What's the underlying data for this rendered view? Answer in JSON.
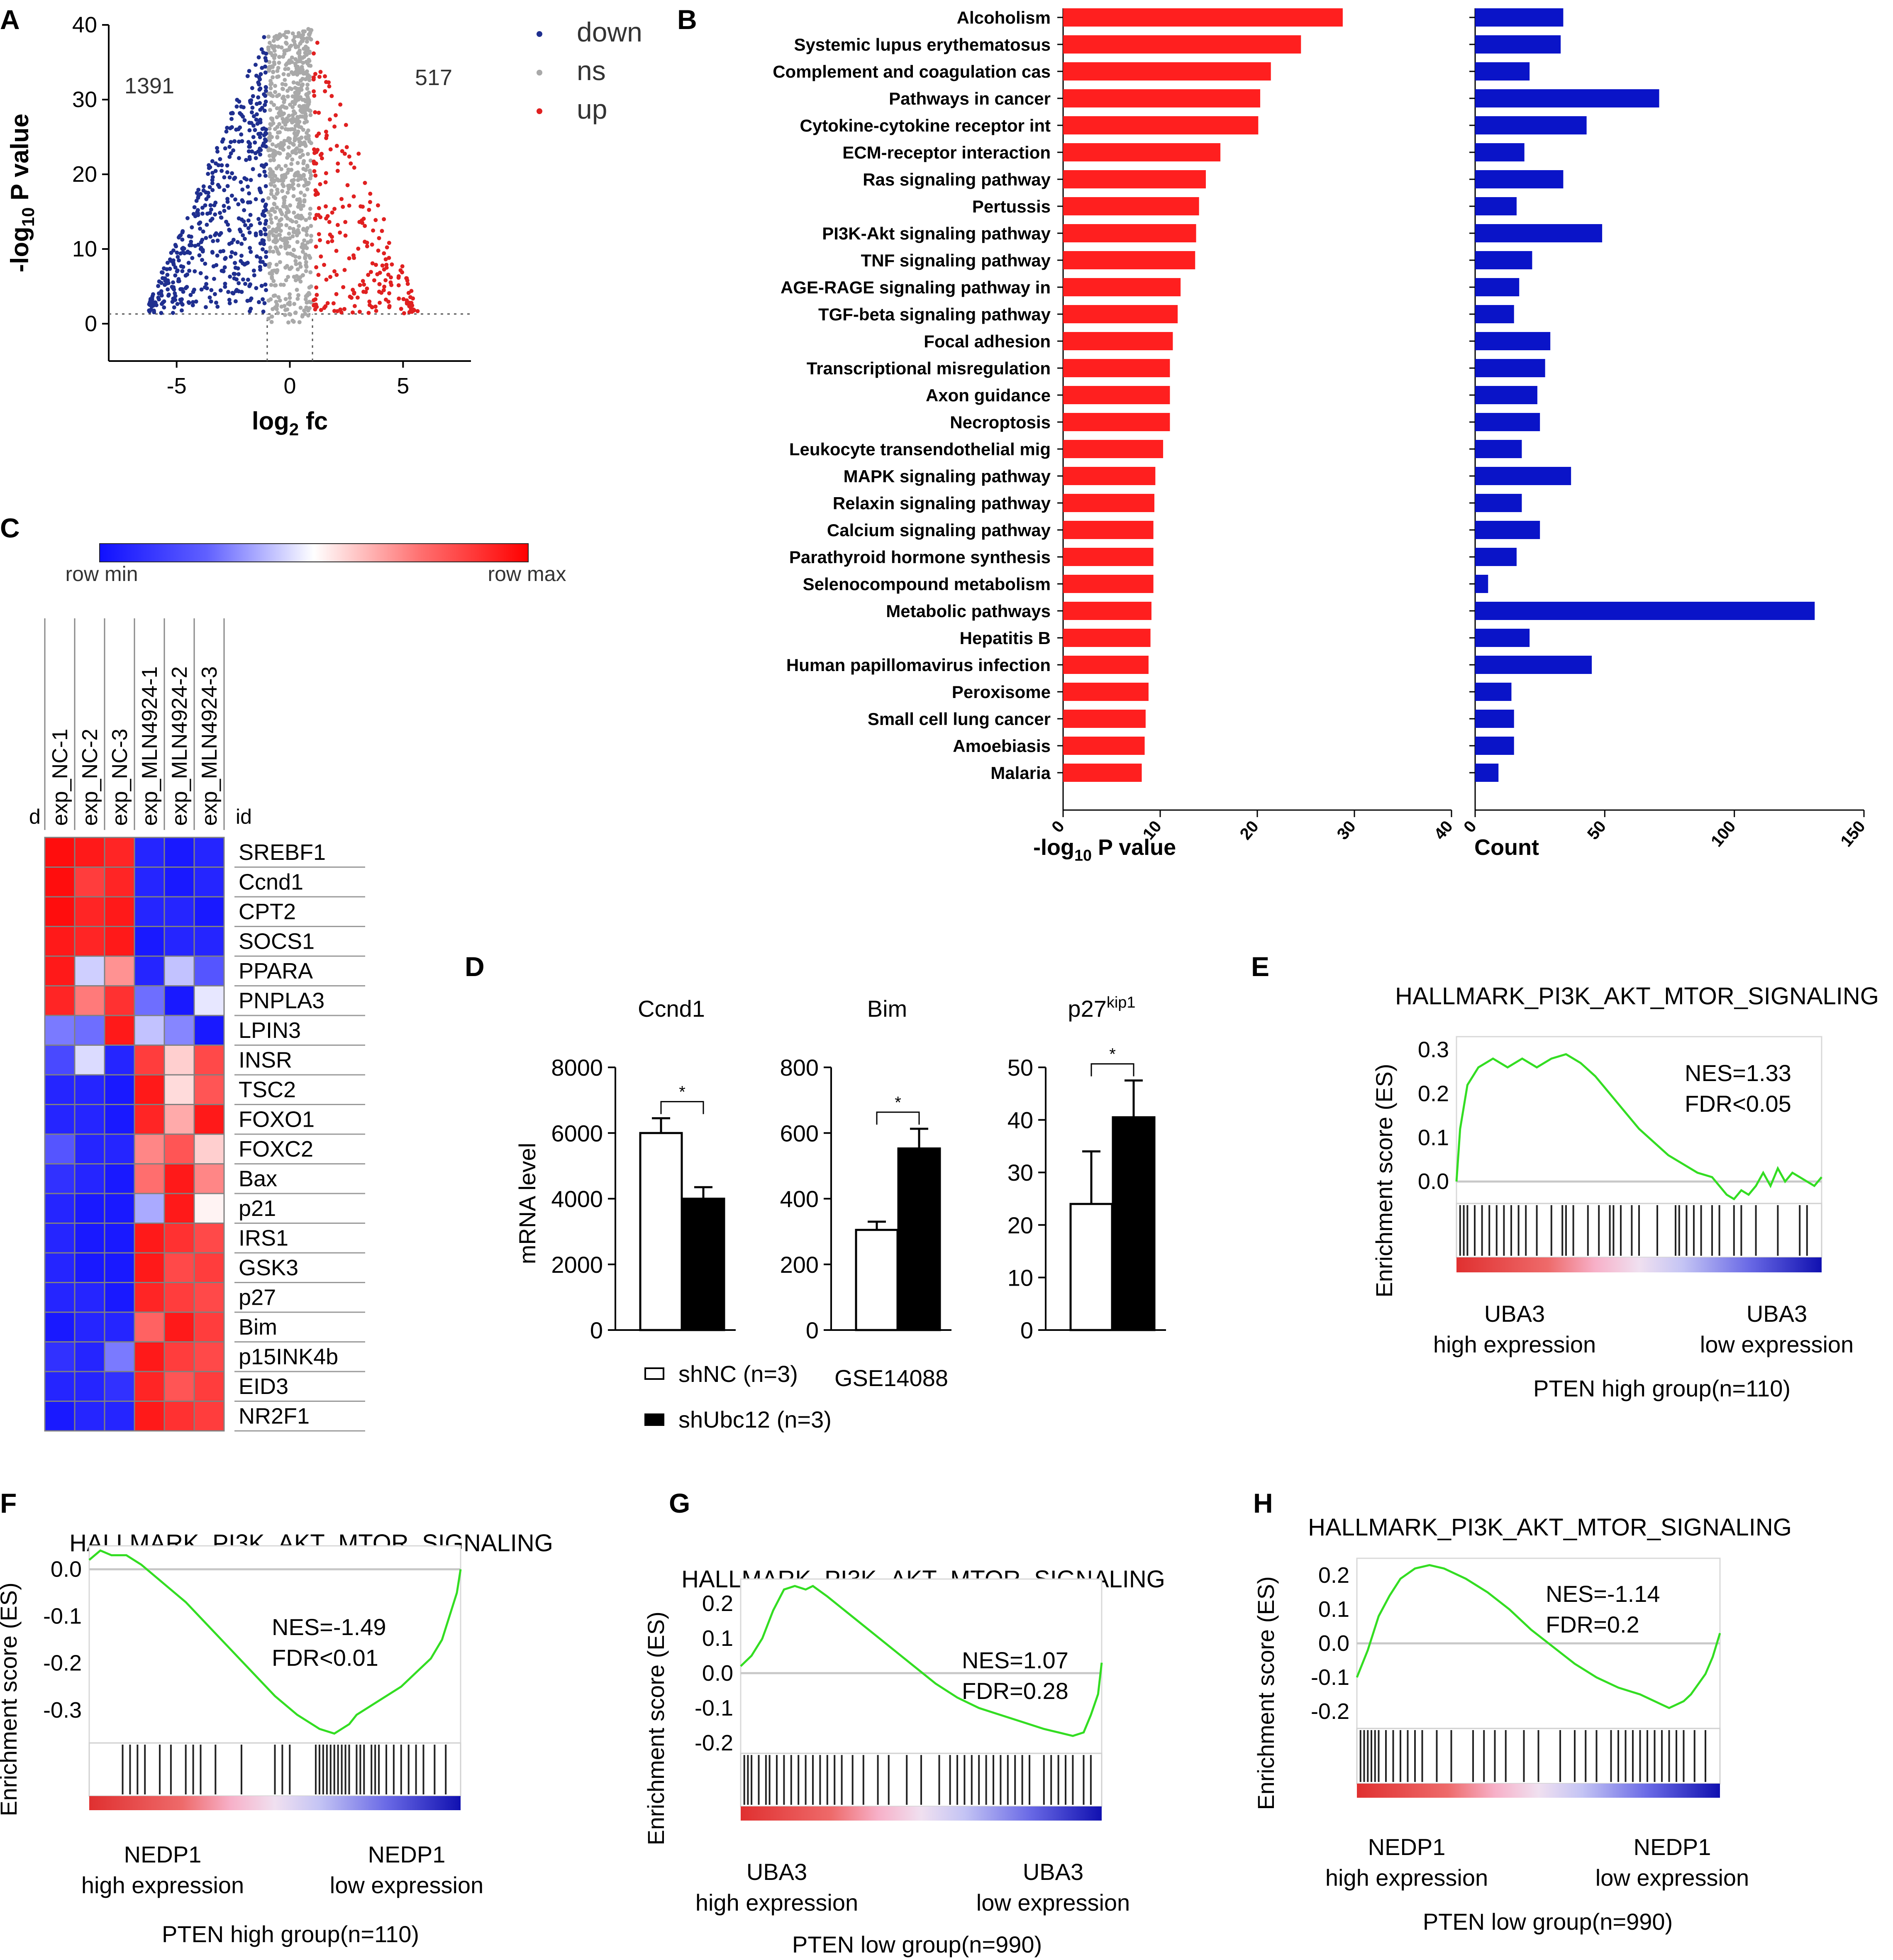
{
  "panels": {
    "A": "A",
    "B": "B",
    "C": "C",
    "D": "D",
    "E": "E",
    "F": "F",
    "G": "G",
    "H": "H"
  },
  "chart_data": [
    {
      "panel": "A",
      "type": "scatter",
      "title": "",
      "xlabel_main": "log",
      "xlabel_sub": "2",
      "xlabel_tail": " fc",
      "ylabel_main": "-log",
      "ylabel_sub": "10",
      "ylabel_tail": " P value",
      "xlim": [
        -8,
        8
      ],
      "ylim": [
        -5,
        40
      ],
      "xticks": [
        -5,
        0,
        5
      ],
      "yticks": [
        0,
        10,
        20,
        30,
        40
      ],
      "fc_threshold": 1,
      "p_threshold": 1.3,
      "legend": [
        {
          "label": "down",
          "color": "#1f2f8f"
        },
        {
          "label": "ns",
          "color": "#a9a9a9"
        },
        {
          "label": "up",
          "color": "#e02020"
        }
      ],
      "counts": {
        "down": "1391",
        "up": "517"
      }
    },
    {
      "panel": "B",
      "type": "bar",
      "orientation": "horizontal",
      "categories": [
        "Alcoholism",
        "Systemic lupus erythematosus",
        "Complement and coagulation cas",
        "Pathways in cancer",
        "Cytokine-cytokine receptor int",
        "ECM-receptor interaction",
        "Ras signaling pathway",
        "Pertussis",
        "PI3K-Akt signaling pathway",
        "TNF signaling pathway",
        "AGE-RAGE signaling pathway in",
        "TGF-beta signaling pathway",
        "Focal adhesion",
        "Transcriptional misregulation",
        "Axon guidance",
        "Necroptosis",
        "Leukocyte transendothelial mig",
        "MAPK signaling pathway",
        "Relaxin signaling pathway",
        "Calcium signaling pathway",
        "Parathyroid hormone synthesis",
        "Selenocompound metabolism",
        "Metabolic pathways",
        "Hepatitis B",
        "Human papillomavirus infection",
        "Peroxisome",
        "Small cell lung cancer",
        "Amoebiasis",
        "Malaria"
      ],
      "series": [
        {
          "name": "-log10 P value",
          "color": "#ff1f1f",
          "values": [
            28.8,
            24.5,
            21.4,
            20.3,
            20.1,
            16.2,
            14.7,
            14.0,
            13.7,
            13.6,
            12.1,
            11.8,
            11.3,
            11.0,
            11.0,
            11.0,
            10.3,
            9.5,
            9.4,
            9.3,
            9.3,
            9.3,
            9.1,
            9.0,
            8.8,
            8.8,
            8.5,
            8.4,
            8.1
          ]
        },
        {
          "name": "Count",
          "color": "#0a14c8",
          "values": [
            34,
            33,
            21,
            71,
            43,
            19,
            34,
            16,
            49,
            22,
            17,
            15,
            29,
            27,
            24,
            25,
            18,
            37,
            18,
            25,
            16,
            5,
            131,
            21,
            45,
            14,
            15,
            15,
            9
          ]
        }
      ],
      "xlabel1_main": "-log",
      "xlabel1_sub": "10",
      "xlabel1_tail": " P value",
      "xlabel2": "Count",
      "xlim1": [
        0,
        40
      ],
      "xticks1": [
        0,
        10,
        20,
        30,
        40
      ],
      "xlim2": [
        0,
        150
      ],
      "xticks2": [
        0,
        50,
        100,
        150
      ]
    },
    {
      "panel": "C",
      "type": "heatmap",
      "colorbar_min": "row min",
      "colorbar_max": "row max",
      "left_label": "d",
      "id_label": "id",
      "columns": [
        "exp_NC-1",
        "exp_NC-2",
        "exp_NC-3",
        "exp_MLN4924-1",
        "exp_MLN4924-2",
        "exp_MLN4924-3"
      ],
      "rows": [
        "SREBF1",
        "Ccnd1",
        "CPT2",
        "SOCS1",
        "PPARA",
        "PNPLA3",
        "LPIN3",
        "INSR",
        "TSC2",
        "FOXO1",
        "FOXC2",
        "Bax",
        "p21",
        "IRS1",
        "GSK3",
        "p27",
        "Bim",
        "p15INK4b",
        "EID3",
        "NR2F1"
      ],
      "values": [
        [
          1,
          0.95,
          0.9,
          -0.9,
          -0.95,
          -0.9
        ],
        [
          1,
          0.8,
          0.9,
          -0.9,
          -0.95,
          -0.9
        ],
        [
          1,
          0.9,
          0.95,
          -0.9,
          -0.9,
          -0.95
        ],
        [
          0.95,
          0.9,
          0.95,
          -0.95,
          -0.9,
          -0.9
        ],
        [
          0.95,
          -0.2,
          0.45,
          -0.9,
          -0.25,
          -0.7
        ],
        [
          0.9,
          0.55,
          0.85,
          -0.6,
          -0.95,
          -0.1
        ],
        [
          -0.55,
          -0.6,
          0.95,
          -0.25,
          -0.5,
          -0.95
        ],
        [
          -0.75,
          -0.15,
          -0.9,
          0.8,
          0.2,
          0.75
        ],
        [
          -0.9,
          -0.9,
          -0.95,
          0.95,
          0.15,
          0.7
        ],
        [
          -0.9,
          -0.9,
          -0.95,
          0.9,
          0.35,
          0.95
        ],
        [
          -0.7,
          -0.9,
          -0.9,
          0.5,
          0.7,
          0.2
        ],
        [
          -0.85,
          -0.9,
          -0.95,
          0.6,
          0.95,
          0.5
        ],
        [
          -0.9,
          -0.95,
          -0.95,
          -0.35,
          0.95,
          0.05
        ],
        [
          -0.9,
          -0.95,
          -0.95,
          0.95,
          0.85,
          0.75
        ],
        [
          -0.9,
          -0.95,
          -0.95,
          0.95,
          0.75,
          0.8
        ],
        [
          -0.9,
          -0.9,
          -0.95,
          0.9,
          0.8,
          0.75
        ],
        [
          -0.95,
          -0.9,
          -0.9,
          0.65,
          0.95,
          0.8
        ],
        [
          -0.85,
          -0.9,
          -0.55,
          0.95,
          0.8,
          0.75
        ],
        [
          -0.9,
          -0.9,
          -0.85,
          0.9,
          0.7,
          0.8
        ],
        [
          -0.95,
          -0.9,
          -0.9,
          0.95,
          0.85,
          0.8
        ]
      ]
    },
    {
      "panel": "D",
      "type": "bar",
      "ylabel": "mRNA level",
      "legend": [
        "shNC (n=3)",
        "shUbc12 (n=3)"
      ],
      "source": "GSE14088",
      "subplots": [
        {
          "title": "Ccnd1",
          "title_sup": "",
          "ylim": [
            0,
            8000
          ],
          "yticks": [
            0,
            2000,
            4000,
            6000,
            8000
          ],
          "values": [
            6000,
            4000
          ],
          "errors": [
            450,
            350
          ],
          "sig": "*"
        },
        {
          "title": "Bim",
          "title_sup": "",
          "ylim": [
            0,
            800
          ],
          "yticks": [
            0,
            200,
            400,
            600,
            800
          ],
          "values": [
            305,
            553
          ],
          "errors": [
            25,
            60
          ],
          "sig": "*"
        },
        {
          "title": "p27",
          "title_sup": "kip1",
          "ylim": [
            0,
            50
          ],
          "yticks": [
            0,
            10,
            20,
            30,
            40,
            50
          ],
          "values": [
            24,
            40.5
          ],
          "errors": [
            10,
            7
          ],
          "sig": "*"
        }
      ]
    },
    {
      "panel": "E",
      "type": "line",
      "title": "HALLMARK_PI3K_AKT_MTOR_SIGNALING",
      "ylabel": "Enrichment score (ES)",
      "ylim": [
        -0.05,
        0.33
      ],
      "yticks": [
        0.0,
        0.1,
        0.2,
        0.3
      ],
      "ytick_labels": [
        "0.0",
        "0.1",
        "0.2",
        "0.3"
      ],
      "nes": "NES=1.33",
      "fdr": "FDR<0.05",
      "left_label_1": "UBA3",
      "left_label_2": "high expression",
      "right_label_1": "UBA3",
      "right_label_2": "low expression",
      "group": "PTEN high group(n=110)",
      "x": [
        0,
        0.01,
        0.03,
        0.06,
        0.1,
        0.14,
        0.18,
        0.22,
        0.26,
        0.3,
        0.34,
        0.38,
        0.42,
        0.46,
        0.5,
        0.54,
        0.58,
        0.62,
        0.66,
        0.7,
        0.72,
        0.74,
        0.76,
        0.78,
        0.8,
        0.82,
        0.84,
        0.86,
        0.88,
        0.9,
        0.92,
        0.94,
        0.96,
        0.98,
        1.0
      ],
      "y": [
        0.0,
        0.12,
        0.22,
        0.26,
        0.28,
        0.26,
        0.28,
        0.26,
        0.28,
        0.29,
        0.27,
        0.24,
        0.2,
        0.16,
        0.12,
        0.09,
        0.06,
        0.04,
        0.02,
        0.01,
        -0.01,
        -0.03,
        -0.04,
        -0.02,
        -0.03,
        -0.01,
        0.02,
        -0.01,
        0.03,
        0.0,
        0.02,
        0.01,
        0.0,
        -0.01,
        0.01
      ],
      "hits": [
        0.01,
        0.02,
        0.03,
        0.05,
        0.07,
        0.09,
        0.11,
        0.13,
        0.15,
        0.17,
        0.19,
        0.22,
        0.26,
        0.29,
        0.3,
        0.32,
        0.36,
        0.39,
        0.42,
        0.43,
        0.45,
        0.48,
        0.5,
        0.55,
        0.6,
        0.61,
        0.63,
        0.65,
        0.67,
        0.7,
        0.72,
        0.76,
        0.78,
        0.82,
        0.88,
        0.94,
        0.96
      ]
    },
    {
      "panel": "F",
      "type": "line",
      "title": "HALLMARK_PI3K_AKT_MTOR_SIGNALING",
      "ylabel": "Enrichment score (ES)",
      "ylim": [
        -0.37,
        0.05
      ],
      "yticks": [
        0.0,
        -0.1,
        -0.2,
        -0.3
      ],
      "ytick_labels": [
        "0.0",
        "-0.1",
        "-0.2",
        "-0.3"
      ],
      "nes": "NES=-1.49",
      "fdr": "FDR<0.01",
      "left_label_1": "NEDP1",
      "left_label_2": "high expression",
      "right_label_1": "NEDP1",
      "right_label_2": "low expression",
      "group": "PTEN high group(n=110)",
      "x": [
        0,
        0.03,
        0.06,
        0.1,
        0.14,
        0.2,
        0.26,
        0.32,
        0.38,
        0.44,
        0.5,
        0.56,
        0.62,
        0.66,
        0.68,
        0.7,
        0.72,
        0.76,
        0.8,
        0.84,
        0.88,
        0.92,
        0.95,
        0.97,
        0.99,
        1.0
      ],
      "y": [
        0.02,
        0.04,
        0.03,
        0.03,
        0.01,
        -0.03,
        -0.07,
        -0.12,
        -0.17,
        -0.22,
        -0.27,
        -0.31,
        -0.34,
        -0.35,
        -0.34,
        -0.33,
        -0.31,
        -0.29,
        -0.27,
        -0.25,
        -0.22,
        -0.19,
        -0.15,
        -0.1,
        -0.05,
        0.0
      ],
      "hits": [
        0.09,
        0.11,
        0.13,
        0.15,
        0.19,
        0.22,
        0.26,
        0.28,
        0.3,
        0.34,
        0.41,
        0.5,
        0.52,
        0.54,
        0.61,
        0.62,
        0.63,
        0.64,
        0.65,
        0.66,
        0.67,
        0.68,
        0.69,
        0.7,
        0.72,
        0.73,
        0.74,
        0.76,
        0.77,
        0.78,
        0.8,
        0.82,
        0.84,
        0.86,
        0.88,
        0.9,
        0.93,
        0.96
      ]
    },
    {
      "panel": "G",
      "type": "line",
      "title": "HALLMARK_PI3K_AKT_MTOR_SIGNALING",
      "ylabel": "Enrichment score (ES)",
      "ylim": [
        -0.23,
        0.27
      ],
      "yticks": [
        0.2,
        0.1,
        0.0,
        -0.1,
        -0.2
      ],
      "ytick_labels": [
        "0.2",
        "0.1",
        "0.0",
        "-0.1",
        "-0.2"
      ],
      "nes": "NES=1.07",
      "fdr": "FDR=0.28",
      "left_label_1": "UBA3",
      "left_label_2": "high expression",
      "right_label_1": "UBA3",
      "right_label_2": "low expression",
      "group": "PTEN low group(n=990)",
      "x": [
        0,
        0.03,
        0.06,
        0.09,
        0.12,
        0.15,
        0.18,
        0.2,
        0.24,
        0.3,
        0.36,
        0.42,
        0.48,
        0.54,
        0.6,
        0.66,
        0.72,
        0.78,
        0.84,
        0.88,
        0.92,
        0.95,
        0.97,
        0.99,
        1.0
      ],
      "y": [
        0.02,
        0.05,
        0.1,
        0.18,
        0.24,
        0.25,
        0.24,
        0.25,
        0.22,
        0.17,
        0.12,
        0.07,
        0.02,
        -0.03,
        -0.07,
        -0.1,
        -0.12,
        -0.14,
        -0.16,
        -0.17,
        -0.18,
        -0.17,
        -0.12,
        -0.06,
        0.03
      ],
      "hits": [
        0.01,
        0.02,
        0.03,
        0.05,
        0.07,
        0.08,
        0.1,
        0.12,
        0.14,
        0.16,
        0.18,
        0.2,
        0.22,
        0.24,
        0.26,
        0.28,
        0.31,
        0.34,
        0.38,
        0.41,
        0.46,
        0.5,
        0.55,
        0.58,
        0.6,
        0.62,
        0.64,
        0.66,
        0.68,
        0.7,
        0.72,
        0.74,
        0.76,
        0.78,
        0.8,
        0.84,
        0.86,
        0.88,
        0.9,
        0.92,
        0.95,
        0.97
      ]
    },
    {
      "panel": "H",
      "type": "line",
      "title": "HALLMARK_PI3K_AKT_MTOR_SIGNALING",
      "ylabel": "Enrichment score (ES)",
      "ylim": [
        -0.25,
        0.25
      ],
      "yticks": [
        0.2,
        0.1,
        0.0,
        -0.1,
        -0.2
      ],
      "ytick_labels": [
        "0.2",
        "0.1",
        "0.0",
        "-0.1",
        "-0.2"
      ],
      "nes": "NES=-1.14",
      "fdr": "FDR=0.2",
      "left_label_1": "NEDP1",
      "left_label_2": "high expression",
      "right_label_1": "NEDP1",
      "right_label_2": "low expression",
      "group": "PTEN low group(n=990)",
      "x": [
        0,
        0.03,
        0.06,
        0.09,
        0.12,
        0.16,
        0.2,
        0.24,
        0.3,
        0.36,
        0.42,
        0.48,
        0.54,
        0.6,
        0.66,
        0.72,
        0.78,
        0.84,
        0.86,
        0.88,
        0.9,
        0.92,
        0.94,
        0.96,
        0.98,
        1.0
      ],
      "y": [
        -0.1,
        -0.02,
        0.08,
        0.14,
        0.19,
        0.22,
        0.23,
        0.22,
        0.19,
        0.15,
        0.1,
        0.04,
        -0.01,
        -0.06,
        -0.1,
        -0.13,
        -0.15,
        -0.18,
        -0.19,
        -0.18,
        -0.17,
        -0.15,
        -0.12,
        -0.09,
        -0.04,
        0.03
      ],
      "hits": [
        0.01,
        0.02,
        0.03,
        0.04,
        0.05,
        0.06,
        0.08,
        0.1,
        0.12,
        0.14,
        0.16,
        0.18,
        0.22,
        0.26,
        0.32,
        0.35,
        0.38,
        0.41,
        0.46,
        0.5,
        0.56,
        0.6,
        0.63,
        0.66,
        0.7,
        0.72,
        0.74,
        0.76,
        0.78,
        0.8,
        0.82,
        0.84,
        0.86,
        0.88,
        0.9,
        0.93,
        0.96
      ]
    }
  ]
}
